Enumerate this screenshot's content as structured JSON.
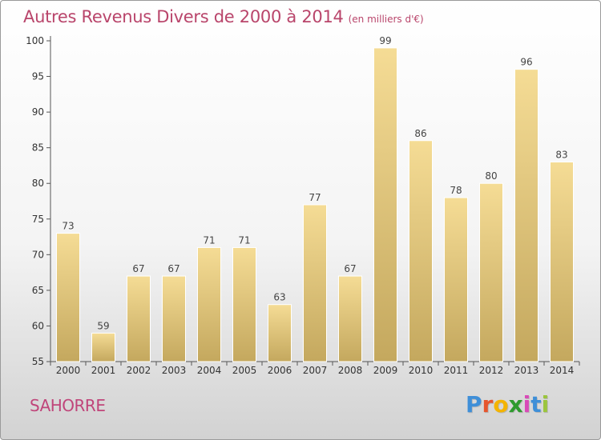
{
  "title": "Autres Revenus Divers de 2000 à 2014",
  "unit_label": "(en milliers d'€)",
  "commune": "SAHORRE",
  "logo": {
    "letters": [
      "P",
      "r",
      "o",
      "x",
      "i",
      "t",
      "i"
    ],
    "colors": [
      "#3f8fd8",
      "#e6552d",
      "#f4b400",
      "#2e9a2e",
      "#d94ab8",
      "#3f8fd8",
      "#9bc53d"
    ]
  },
  "colors": {
    "title": "#b9456b",
    "bar_top": "#f5dc95",
    "bar_bottom": "#c4a85e",
    "bar_edge": "#ffffff"
  },
  "chart_data": {
    "type": "bar",
    "categories": [
      "2000",
      "2001",
      "2002",
      "2003",
      "2004",
      "2005",
      "2006",
      "2007",
      "2008",
      "2009",
      "2010",
      "2011",
      "2012",
      "2013",
      "2014"
    ],
    "values": [
      73,
      59,
      67,
      67,
      71,
      71,
      63,
      77,
      67,
      99,
      86,
      78,
      80,
      96,
      83
    ],
    "ylim": [
      55,
      100
    ],
    "yticks": [
      55,
      60,
      65,
      70,
      75,
      80,
      85,
      90,
      95,
      100
    ],
    "grid": false,
    "legend": "none"
  }
}
